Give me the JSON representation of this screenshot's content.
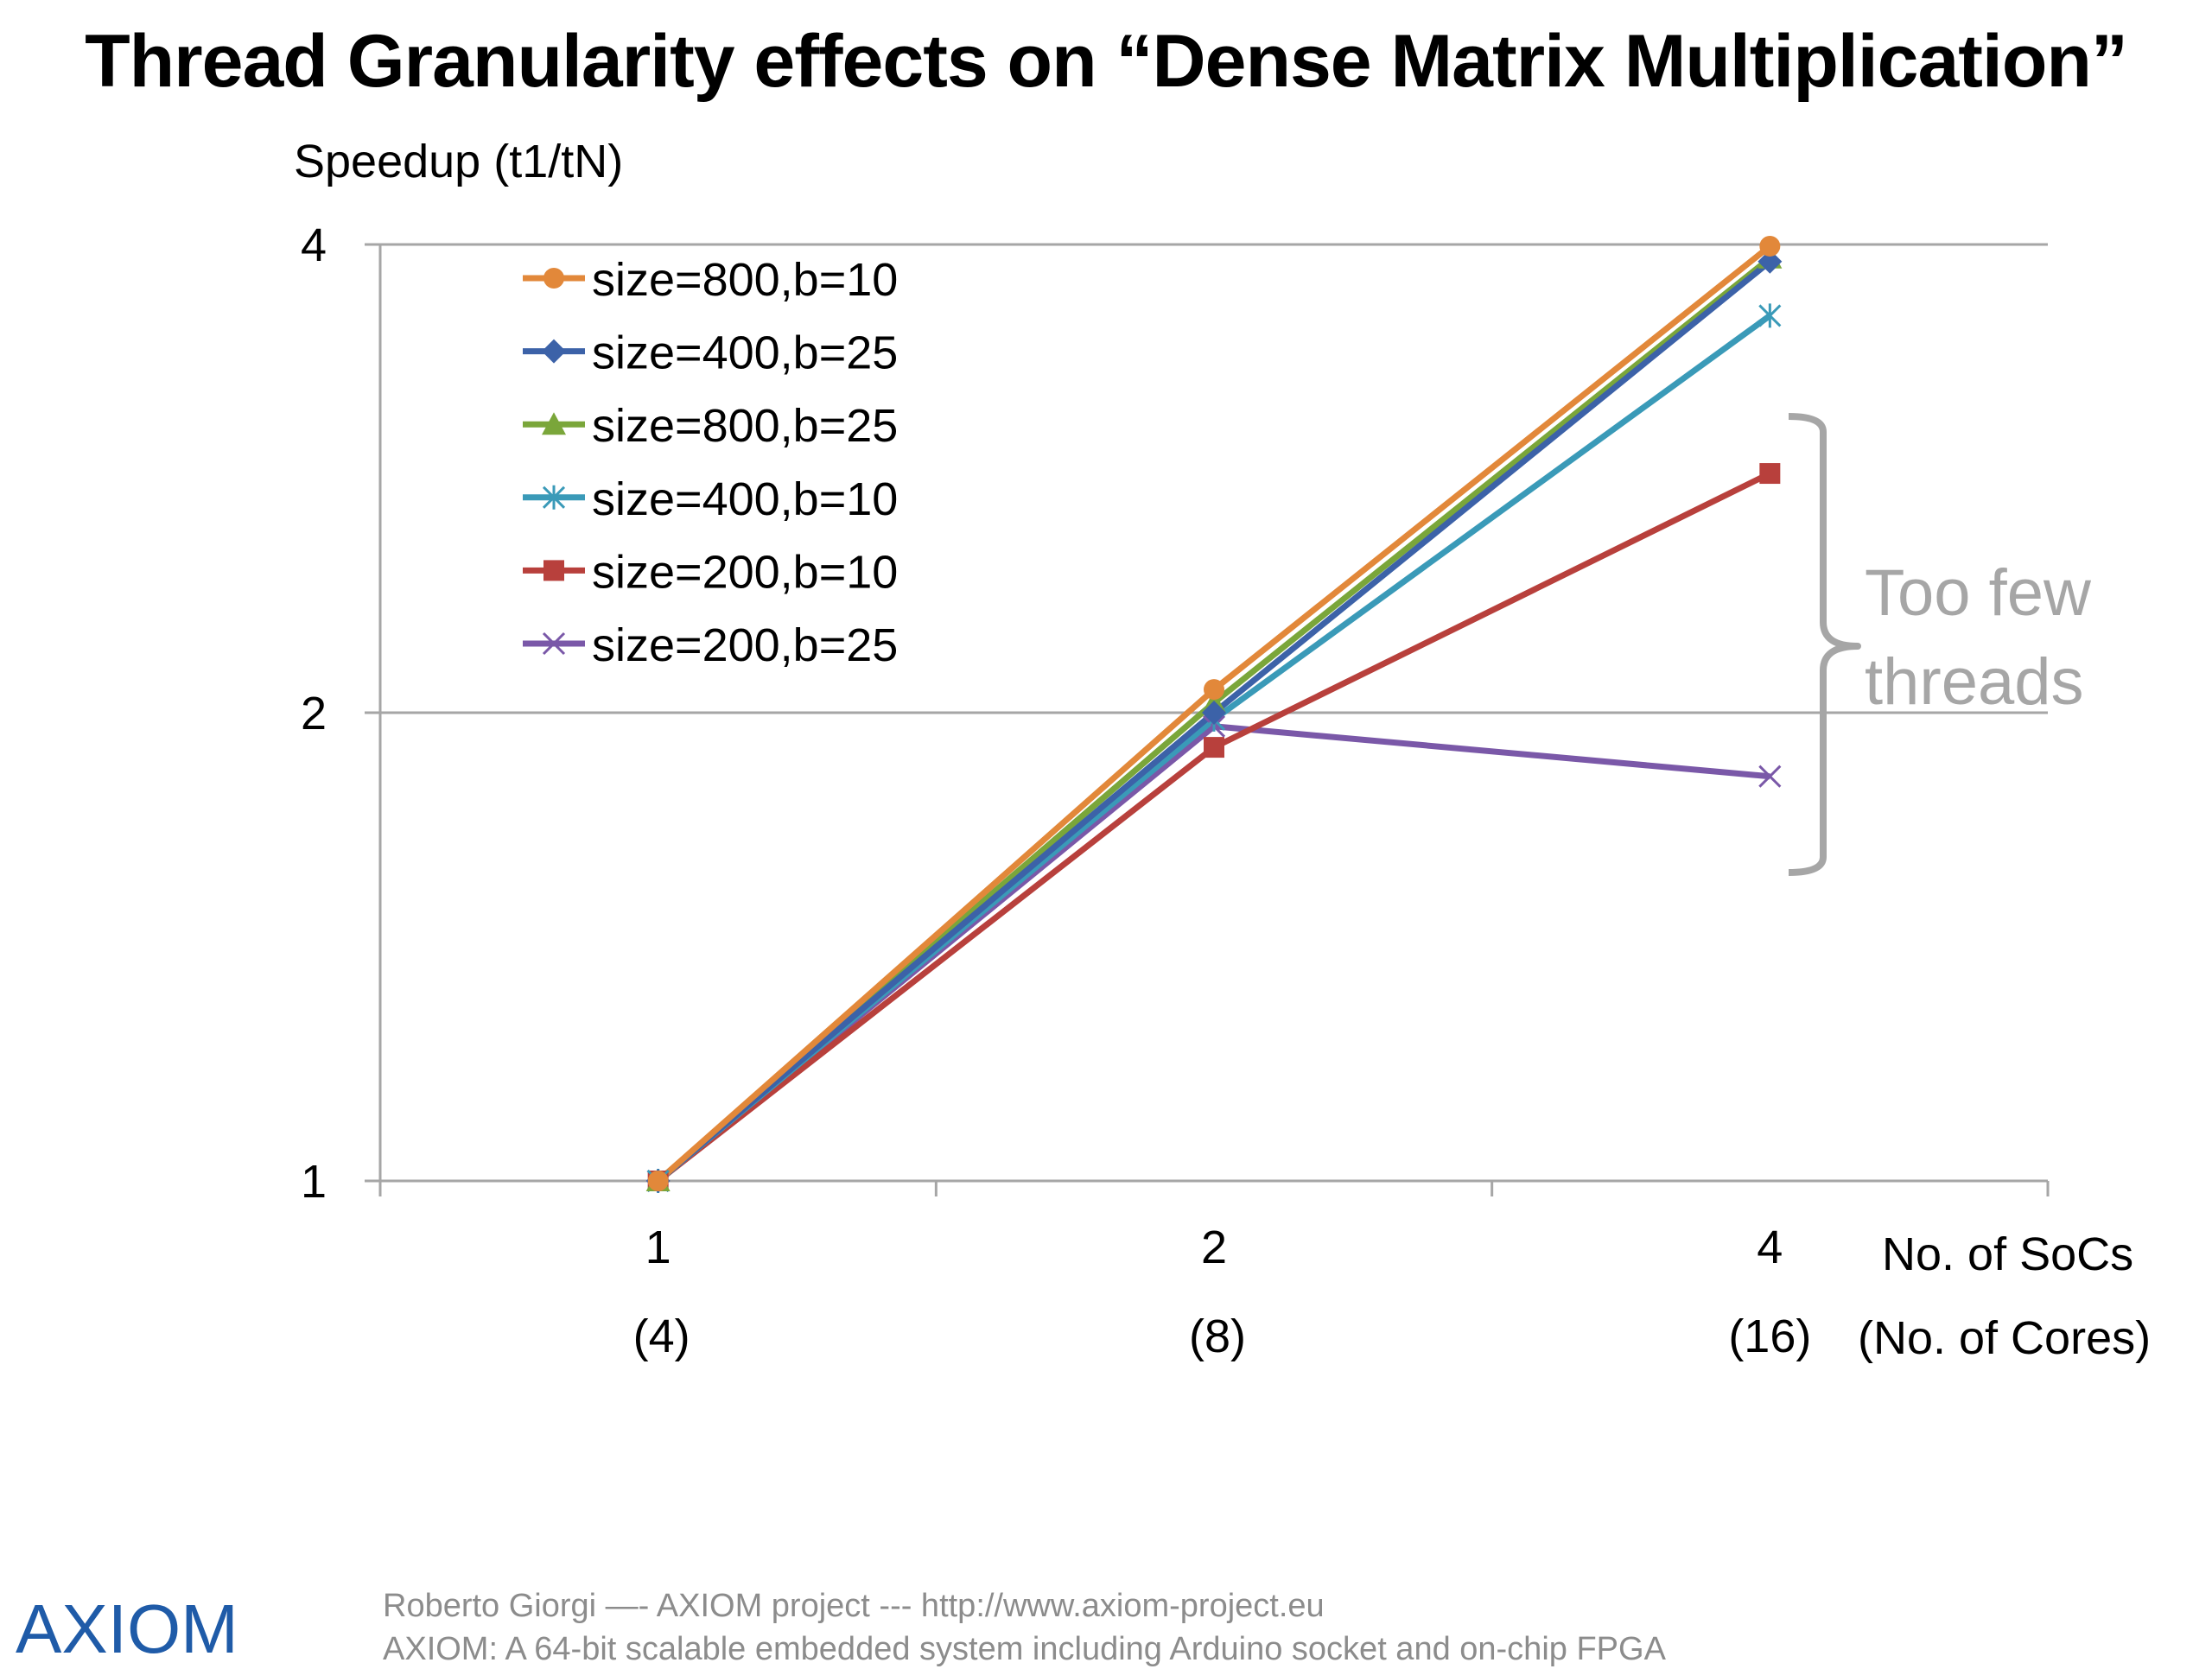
{
  "slide": {
    "title": "Thread Granularity effects on “Dense Matrix Multiplication”"
  },
  "chart_data": {
    "type": "line",
    "title": "",
    "ylabel": "Speedup (t1/tN)",
    "xlabel": "No. of SoCs",
    "xlabel_secondary": "(No. of Cores)",
    "yscale": "log2",
    "ylim": [
      1,
      4
    ],
    "yticks": [
      "1",
      "2",
      "4"
    ],
    "categories": [
      "1",
      "2",
      "4"
    ],
    "categories_secondary": [
      "(4)",
      "(8)",
      "(16)"
    ],
    "grid": true,
    "legend_position": "top-left",
    "series": [
      {
        "name": "size=800,b=10",
        "marker": "circle",
        "color": "#e2883a",
        "values": [
          1,
          2.07,
          3.99
        ]
      },
      {
        "name": "size=400,b=25",
        "marker": "diamond",
        "color": "#3c62a8",
        "values": [
          1,
          2.0,
          3.9
        ]
      },
      {
        "name": "size=800,b=25",
        "marker": "triangle",
        "color": "#7aa63a",
        "values": [
          1,
          2.03,
          3.92
        ]
      },
      {
        "name": "size=400,b=10",
        "marker": "asterisk",
        "color": "#3a9ab8",
        "values": [
          1,
          1.98,
          3.6
        ]
      },
      {
        "name": "size=200,b=10",
        "marker": "square",
        "color": "#b8403c",
        "values": [
          1,
          1.9,
          2.85
        ]
      },
      {
        "name": "size=200,b=25",
        "marker": "x",
        "color": "#7a58a8",
        "values": [
          1,
          1.96,
          1.82
        ]
      }
    ],
    "annotations": [
      {
        "text_lines": [
          "Too few",
          "threads"
        ],
        "color": "#a6a6a6"
      }
    ]
  },
  "footer": {
    "logo_text": "AXIOM",
    "line1": "Roberto Giorgi  —-   AXIOM project  ---  http://www.axiom-project.eu",
    "line2": "AXIOM: A 64-bit scalable embedded system including Arduino socket and on-chip FPGA"
  }
}
